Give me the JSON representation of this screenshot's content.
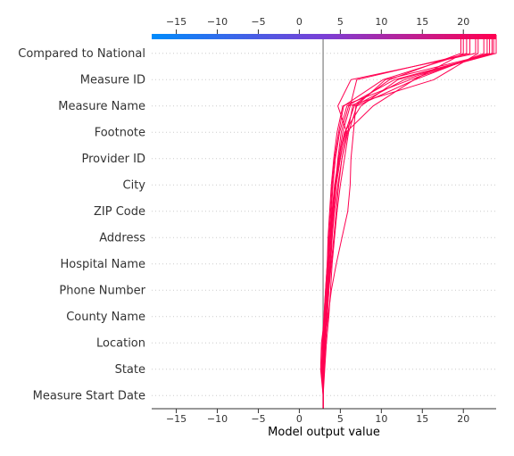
{
  "chart_data": {
    "type": "line",
    "xlabel": "Model output value",
    "xlim": [
      -18,
      24
    ],
    "xticks": [
      "−15",
      "−10",
      "−5",
      "0",
      "5",
      "10",
      "15",
      "20"
    ],
    "xtick_values": [
      -15,
      -10,
      -5,
      0,
      5,
      10,
      15,
      20
    ],
    "base_value": 2.9,
    "features": [
      "Measure Start Date",
      "State",
      "Location",
      "County Name",
      "Phone Number",
      "Hospital Name",
      "Address",
      "ZIP Code",
      "City",
      "Provider ID",
      "Footnote",
      "Measure Name",
      "Measure ID",
      "Compared to National"
    ],
    "colorbar": {
      "low_color": "#008bfb",
      "mid_color": "#7a3fd6",
      "high_color": "#ff0051",
      "range": [
        -18,
        24
      ]
    },
    "line_color": "#ff0051",
    "base_line_color": "#999999",
    "series": [
      {
        "values": [
          2.9,
          2.6,
          2.7,
          3.1,
          3.4,
          3.6,
          3.8,
          4.0,
          4.3,
          4.8,
          5.5,
          7.5,
          12.0,
          24.0
        ]
      },
      {
        "values": [
          2.9,
          2.9,
          3.1,
          3.5,
          3.9,
          4.5,
          5.2,
          5.9,
          6.2,
          6.3,
          6.6,
          6.9,
          10.5,
          23.5
        ]
      },
      {
        "values": [
          2.9,
          2.8,
          2.9,
          3.2,
          3.4,
          3.6,
          3.7,
          3.9,
          4.1,
          4.4,
          4.9,
          5.8,
          11.6,
          23.7
        ]
      },
      {
        "values": [
          2.9,
          3.0,
          3.2,
          3.4,
          3.6,
          3.8,
          4.0,
          4.2,
          4.5,
          5.0,
          5.6,
          6.7,
          12.8,
          23.2
        ]
      },
      {
        "values": [
          2.9,
          2.7,
          2.8,
          3.0,
          3.2,
          3.4,
          3.5,
          3.7,
          3.9,
          4.2,
          4.6,
          5.3,
          13.5,
          22.9
        ]
      },
      {
        "values": [
          2.9,
          3.1,
          3.3,
          3.6,
          3.8,
          4.0,
          4.3,
          4.6,
          5.0,
          5.5,
          6.0,
          7.0,
          14.1,
          22.5
        ]
      },
      {
        "values": [
          2.9,
          2.8,
          3.0,
          3.3,
          3.5,
          3.7,
          3.9,
          4.1,
          4.4,
          4.7,
          5.1,
          6.0,
          16.4,
          21.8
        ]
      },
      {
        "values": [
          2.9,
          2.9,
          3.0,
          3.1,
          3.3,
          3.5,
          3.7,
          4.0,
          4.4,
          4.9,
          5.7,
          9.0,
          14.0,
          20.0
        ]
      },
      {
        "values": [
          2.9,
          3.0,
          3.1,
          3.3,
          3.5,
          3.8,
          4.0,
          4.3,
          4.7,
          5.2,
          5.9,
          6.5,
          11.0,
          19.7
        ]
      },
      {
        "values": [
          2.9,
          2.8,
          2.9,
          3.0,
          3.2,
          3.4,
          3.6,
          3.8,
          4.0,
          4.3,
          4.8,
          5.4,
          10.2,
          20.4
        ]
      },
      {
        "values": [
          2.9,
          3.0,
          3.2,
          3.4,
          3.6,
          3.9,
          4.2,
          4.5,
          4.8,
          5.2,
          5.8,
          4.7,
          6.3,
          21.5
        ]
      },
      {
        "values": [
          2.9,
          2.9,
          3.0,
          3.2,
          3.3,
          3.5,
          3.8,
          4.1,
          4.4,
          4.8,
          5.3,
          6.2,
          7.0,
          20.8
        ]
      }
    ]
  }
}
